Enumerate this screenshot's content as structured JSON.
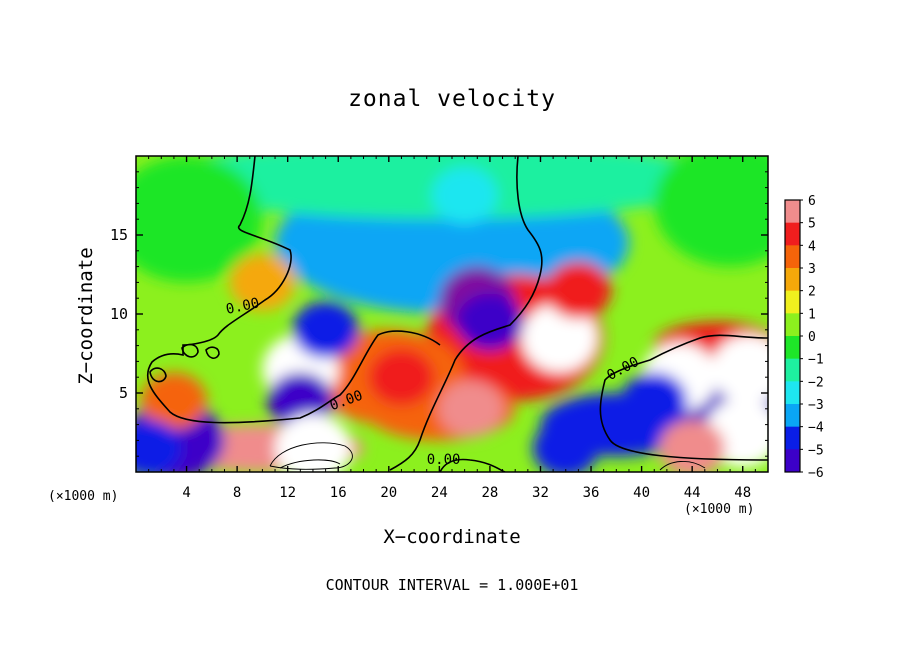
{
  "chart_data": {
    "type": "heatmap",
    "title": "zonal velocity",
    "xlabel": "X−coordinate",
    "ylabel": "Z−coordinate",
    "x_unit_left": "(×1000 m)",
    "x_unit_right": "(×1000 m)",
    "footer": "CONTOUR INTERVAL = 1.000E+01",
    "xlim": [
      0,
      50
    ],
    "ylim": [
      0,
      20
    ],
    "x_ticks": [
      4,
      8,
      12,
      16,
      20,
      24,
      28,
      32,
      36,
      40,
      44,
      48
    ],
    "x_tick_labels": [
      "4",
      "8",
      "12",
      "16",
      "20",
      "24",
      "28",
      "32",
      "36",
      "40",
      "44",
      "48"
    ],
    "y_ticks": [
      5,
      10,
      15
    ],
    "y_tick_labels": [
      "5",
      "10",
      "15"
    ],
    "colorbar": {
      "ticks": [
        6,
        5,
        4,
        3,
        2,
        1,
        0,
        -1,
        -2,
        -3,
        -4,
        -5,
        -6
      ],
      "tick_labels": [
        "6",
        "5",
        "4",
        "3",
        "2",
        "1",
        "0",
        "−1",
        "−2",
        "−3",
        "−4",
        "−5",
        "−6"
      ],
      "range": [
        -6,
        6
      ],
      "colors": [
        "#7f0fa0",
        "#3c00c8",
        "#0a1ee6",
        "#0a64f0",
        "#0aa6f5",
        "#1ee6f0",
        "#1ef0a0",
        "#1ee628",
        "#8cf01e",
        "#f0f01e",
        "#f5a80a",
        "#f5640a",
        "#f01e1e",
        "#f08c8c",
        "#ffffff"
      ]
    },
    "contour_labels": [
      "0.00",
      "0.00",
      "0.00",
      "0.00"
    ],
    "features": [
      {
        "x": 13,
        "z": 6.5,
        "value": 8
      },
      {
        "x": 27,
        "z": 10.8,
        "value": -7
      },
      {
        "x": 28,
        "z": 9.5,
        "value": -5
      },
      {
        "x": 33.5,
        "z": 8.5,
        "value": 7
      },
      {
        "x": 35,
        "z": 11.5,
        "value": 4.5
      },
      {
        "x": 21,
        "z": 6,
        "value": 5
      },
      {
        "x": 26.5,
        "z": 4,
        "value": 5.5
      },
      {
        "x": 13,
        "z": 4.5,
        "value": -4.5
      },
      {
        "x": 15,
        "z": 9,
        "value": -4
      },
      {
        "x": 21,
        "z": 13.5,
        "value": -2.5
      },
      {
        "x": 3,
        "z": 4.5,
        "value": 4
      },
      {
        "x": 1,
        "z": 1.5,
        "value": -4
      },
      {
        "x": 43,
        "z": 6,
        "value": 7
      },
      {
        "x": 41,
        "z": 4.5,
        "value": -4
      },
      {
        "x": 48.5,
        "z": 6.5,
        "value": 6.5
      },
      {
        "x": 48,
        "z": 2.5,
        "value": 7
      },
      {
        "x": 44,
        "z": 1.5,
        "value": 5.5
      },
      {
        "x": 34,
        "z": 1.5,
        "value": -4
      },
      {
        "x": 14,
        "z": 1.5,
        "value": 7
      },
      {
        "x": 10,
        "z": 12,
        "value": 3
      },
      {
        "x": 26,
        "z": 17.5,
        "value": -1.5
      },
      {
        "x": 45,
        "z": 16,
        "value": 0.5
      }
    ]
  }
}
